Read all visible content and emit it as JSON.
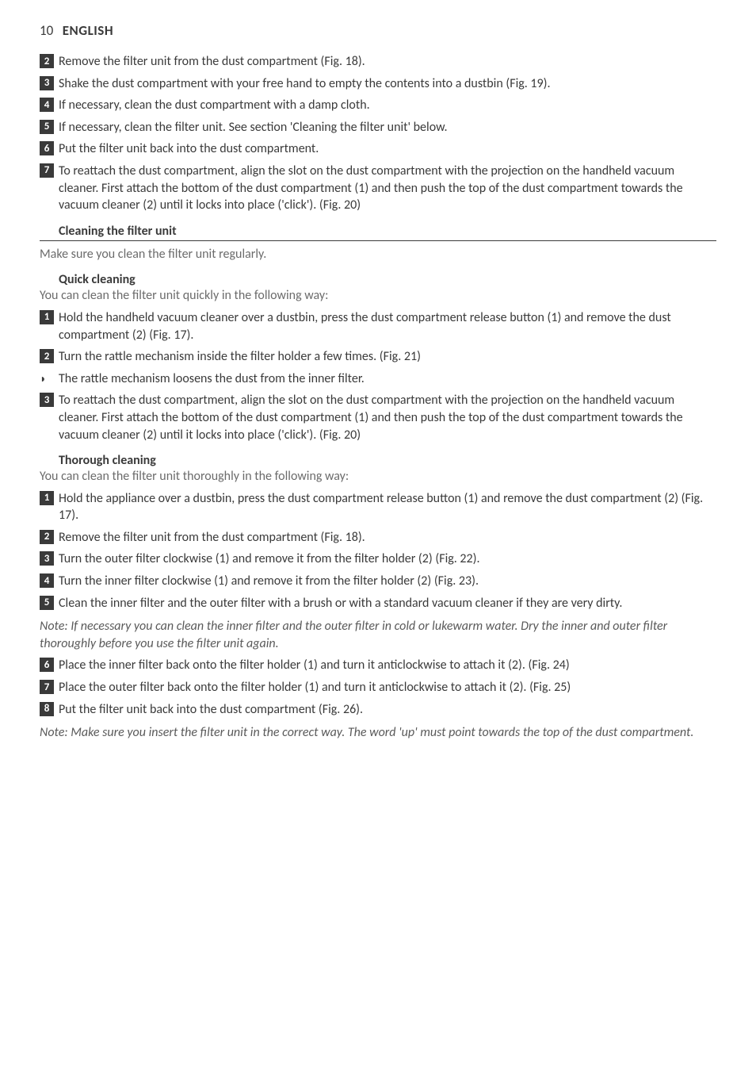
{
  "header": {
    "page_num": "10",
    "lang": "ENGLISH"
  },
  "block_a": [
    {
      "n": "2",
      "t": "Remove the filter unit from the dust compartment (Fig. 18)."
    },
    {
      "n": "3",
      "t": "Shake the dust compartment with your free hand to empty the contents into a dustbin (Fig. 19)."
    },
    {
      "n": "4",
      "t": "If necessary, clean the dust compartment with a damp cloth."
    },
    {
      "n": "5",
      "t": "If necessary, clean the filter unit. See section 'Cleaning the filter unit' below."
    },
    {
      "n": "6",
      "t": "Put the filter unit back into the dust compartment."
    },
    {
      "n": "7",
      "t": "To reattach the dust compartment, align the slot on the dust compartment with the projection on the handheld vacuum cleaner. First attach the bottom of the dust compartment (1) and then push the top of the dust compartment towards the vacuum cleaner (2) until it locks into place ('click').  (Fig. 20)"
    }
  ],
  "section_clean": {
    "title": "Cleaning the filter unit",
    "intro": "Make sure you clean the filter unit regularly."
  },
  "quick": {
    "title": "Quick cleaning",
    "intro": "You can clean the filter unit quickly in the following way:",
    "steps": [
      {
        "n": "1",
        "t": "Hold the handheld vacuum cleaner over a dustbin, press the dust compartment release button (1) and remove the dust compartment (2) (Fig. 17)."
      },
      {
        "n": "2",
        "t": "Turn the rattle mechanism inside the filter holder a few times.  (Fig. 21)"
      }
    ],
    "bullet": "The rattle mechanism loosens the dust from the inner filter.",
    "step3": {
      "n": "3",
      "t": "To reattach the dust compartment, align the slot on the dust compartment with the projection on the handheld vacuum cleaner. First attach the bottom of the dust compartment (1) and then push the top of the dust compartment towards the vacuum cleaner (2) until it locks into place ('click').  (Fig. 20)"
    }
  },
  "thorough": {
    "title": "Thorough cleaning",
    "intro": "You can clean the filter unit thoroughly in the following way:",
    "steps_a": [
      {
        "n": "1",
        "t": "Hold the appliance over a dustbin, press the dust compartment release button (1) and remove the dust compartment (2) (Fig. 17)."
      },
      {
        "n": "2",
        "t": "Remove the filter unit from the dust compartment (Fig. 18)."
      },
      {
        "n": "3",
        "t": "Turn the outer filter clockwise (1) and remove it from the filter holder (2) (Fig. 22)."
      },
      {
        "n": "4",
        "t": "Turn the inner filter clockwise (1) and remove it from the filter holder (2) (Fig. 23)."
      },
      {
        "n": "5",
        "t": "Clean the inner filter and the outer filter with a brush or with a standard vacuum cleaner if they are very dirty."
      }
    ],
    "note1": "Note: If necessary you can clean the inner filter and the outer filter in cold or lukewarm water. Dry the inner and outer filter thoroughly before you use the filter unit again.",
    "steps_b": [
      {
        "n": "6",
        "t": "Place the inner filter back onto the filter holder (1) and turn it anticlockwise to attach it (2).  (Fig. 24)"
      },
      {
        "n": "7",
        "t": "Place the outer filter back onto the filter holder (1) and turn it anticlockwise to attach it (2).  (Fig. 25)"
      },
      {
        "n": "8",
        "t": "Put the filter unit back into the dust compartment (Fig. 26)."
      }
    ],
    "note2": "Note: Make sure you insert the filter unit in the correct way. The word 'up' must point towards the top of the dust compartment."
  }
}
